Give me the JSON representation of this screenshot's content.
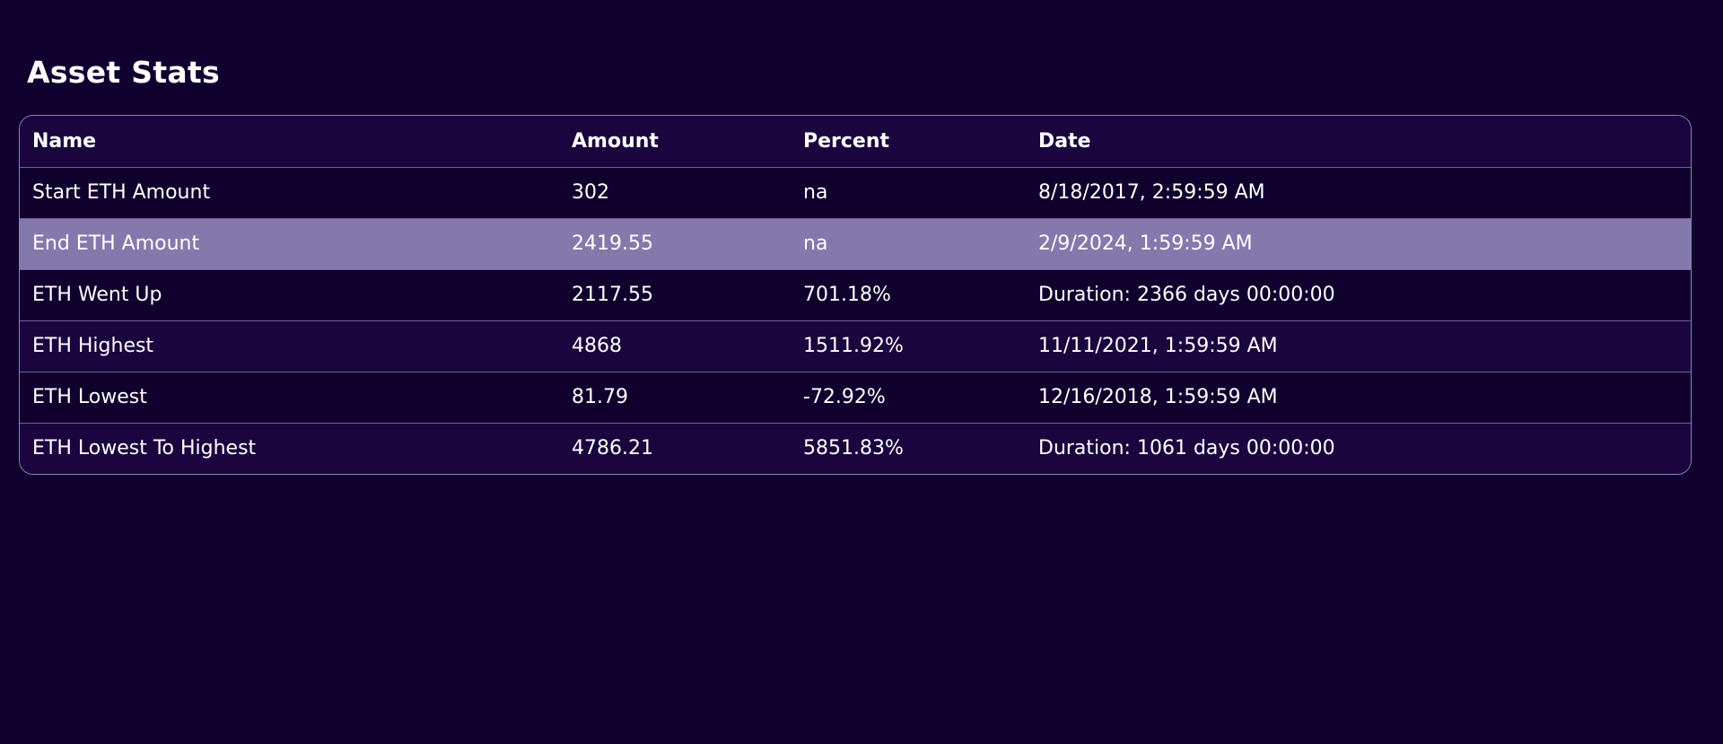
{
  "page": {
    "title": "Asset Stats"
  },
  "table": {
    "headers": {
      "name": "Name",
      "amount": "Amount",
      "percent": "Percent",
      "date": "Date"
    },
    "rows": [
      {
        "name": "Start ETH Amount",
        "amount": "302",
        "percent": "na",
        "date": "8/18/2017, 2:59:59 AM"
      },
      {
        "name": "End ETH Amount",
        "amount": "2419.55",
        "percent": "na",
        "date": "2/9/2024, 1:59:59 AM"
      },
      {
        "name": "ETH Went Up",
        "amount": "2117.55",
        "percent": "701.18%",
        "date": "Duration: 2366 days 00:00:00"
      },
      {
        "name": "ETH Highest",
        "amount": "4868",
        "percent": "1511.92%",
        "date": "11/11/2021, 1:59:59 AM"
      },
      {
        "name": "ETH Lowest",
        "amount": "81.79",
        "percent": "-72.92%",
        "date": "12/16/2018, 1:59:59 AM"
      },
      {
        "name": "ETH Lowest To Highest",
        "amount": "4786.21",
        "percent": "5851.83%",
        "date": "Duration: 1061 days 00:00:00"
      }
    ]
  },
  "colors": {
    "background": "#100030",
    "row_alt": "#1a053f",
    "row_highlight": "#8479ad",
    "border": "#8e82b6"
  }
}
